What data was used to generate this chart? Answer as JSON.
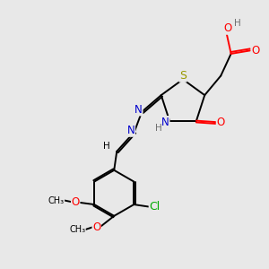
{
  "background_color": "#e8e8e8",
  "colors": {
    "O": "#ff0000",
    "N": "#0000cc",
    "S": "#999900",
    "Cl": "#00aa00",
    "C": "#000000",
    "H": "#707070"
  },
  "font_size": 8.5,
  "line_width": 1.4,
  "xlim": [
    0,
    10
  ],
  "ylim": [
    0,
    10
  ]
}
